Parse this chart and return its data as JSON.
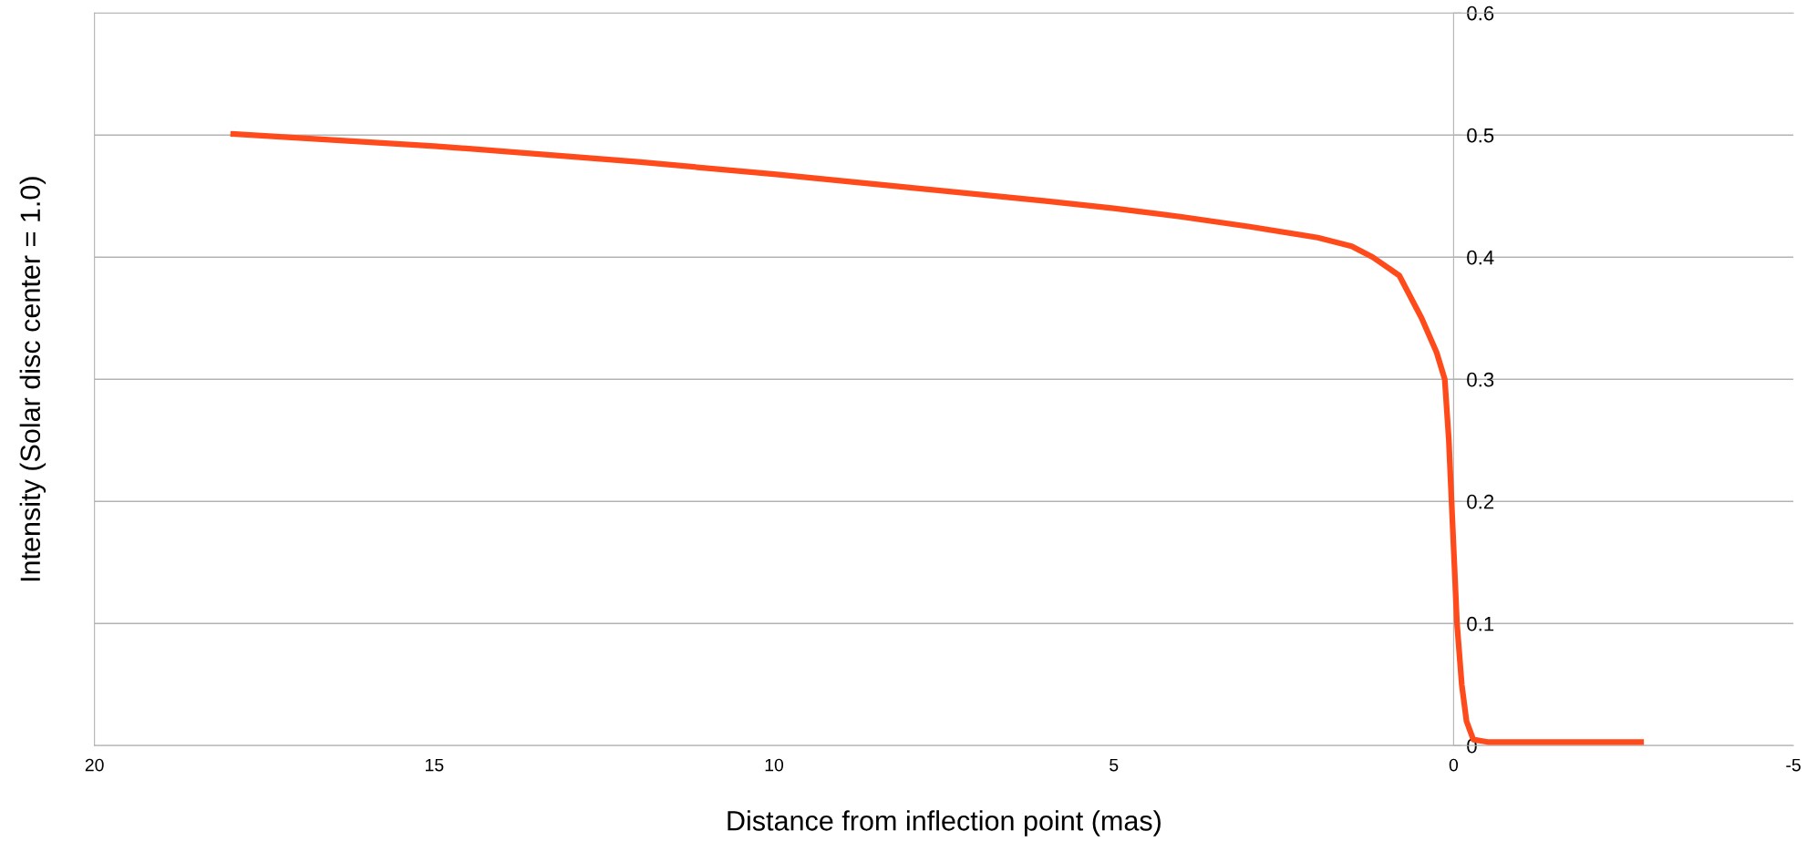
{
  "chart_data": {
    "type": "line",
    "xlabel": "Distance from inflection point (mas)",
    "ylabel": "Intensity (Solar disc center = 1.0)",
    "x": [
      18,
      15,
      12,
      10,
      8,
      6,
      5,
      4,
      3,
      2,
      1.5,
      1.19,
      0.8,
      0.47,
      0.25,
      0.13,
      0.07,
      0.03,
      -0.01,
      -0.05,
      -0.12,
      -0.19,
      -0.29,
      -0.5,
      -1.5,
      -2.8
    ],
    "series": [
      {
        "color": "#ff4a1c",
        "values": [
          0.501,
          0.491,
          0.478,
          0.468,
          0.457,
          0.446,
          0.44,
          0.433,
          0.425,
          0.416,
          0.409,
          0.4,
          0.385,
          0.35,
          0.322,
          0.3,
          0.25,
          0.2,
          0.15,
          0.1,
          0.05,
          0.02,
          0.005,
          0.003,
          0.003,
          0.003
        ]
      }
    ],
    "xlim": [
      20,
      -5
    ],
    "xticks": [
      20,
      15,
      10,
      5,
      0,
      -5
    ],
    "ylim": [
      0,
      0.6
    ],
    "yticks": [
      0,
      0.1,
      0.2,
      0.3,
      0.4,
      0.5,
      0.6
    ],
    "grid": "y",
    "legend": false,
    "marker": "none",
    "line_style": "solid"
  }
}
